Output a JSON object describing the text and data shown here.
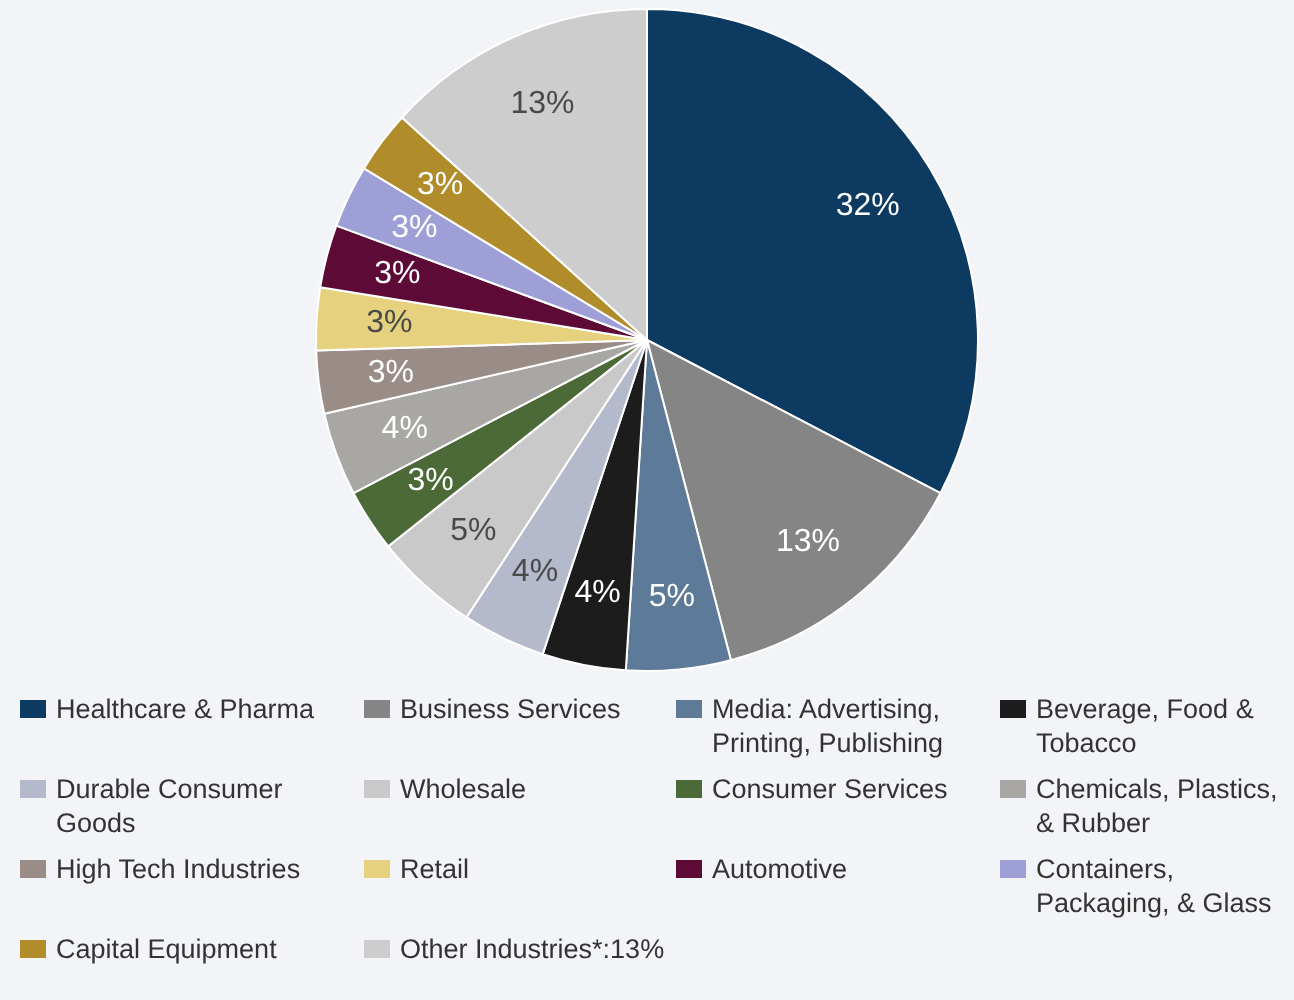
{
  "chart_data": {
    "type": "pie",
    "categories": [
      "Healthcare & Pharma",
      "Business Services",
      "Media: Advertising, Printing, Publishing",
      "Beverage, Food & Tobacco",
      "Durable Consumer Goods",
      "Wholesale",
      "Consumer Services",
      "Chemicals, Plastics, & Rubber",
      "High Tech Industries",
      "Retail",
      "Automotive",
      "Containers, Packaging, & Glass",
      "Capital Equipment",
      "Other Industries*:13%"
    ],
    "values": [
      32,
      13,
      5,
      4,
      4,
      5,
      3,
      4,
      3,
      3,
      3,
      3,
      3,
      13
    ],
    "value_labels": [
      "32%",
      "13%",
      "5%",
      "4%",
      "4%",
      "5%",
      "3%",
      "4%",
      "3%",
      "3%",
      "3%",
      "3%",
      "3%",
      "13%"
    ],
    "colors": [
      "#0d3a60",
      "#858585",
      "#5d7a98",
      "#1c1c1c",
      "#b4b9cc",
      "#c9c9c9",
      "#4b6a37",
      "#a8a7a4",
      "#9a8d88",
      "#e6d27e",
      "#5e0a36",
      "#9d9fd6",
      "#b08d2a",
      "#cdcdcd"
    ],
    "legend": "bottom"
  }
}
